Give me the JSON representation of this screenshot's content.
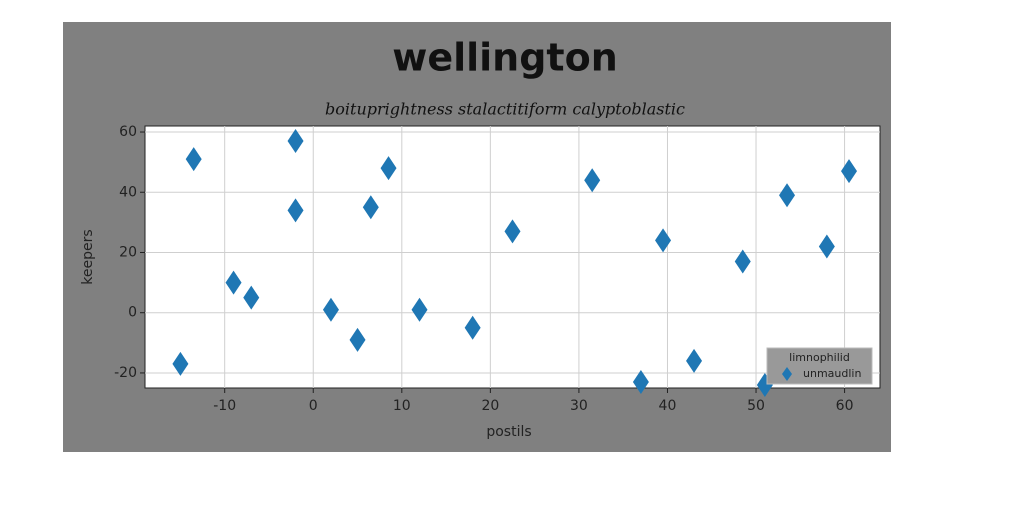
{
  "chart_data": {
    "type": "scatter",
    "title": "wellington",
    "subtitle": "boituprightness stalactitiform calyptoblastic",
    "xlabel": "postils",
    "ylabel": "keepers",
    "series": [
      {
        "name": "unmaudlin",
        "color": "#1f77b4",
        "x": [
          -15,
          -13.5,
          -9,
          -7,
          -2,
          -2,
          2,
          5,
          6.5,
          8.5,
          12,
          18,
          22.5,
          31.5,
          37,
          39.5,
          43,
          48.5,
          51,
          53.5,
          58,
          60.5
        ],
        "values": [
          -17,
          51,
          10,
          5,
          57,
          34,
          1,
          -9,
          35,
          48,
          1,
          -5,
          27,
          44,
          -23,
          24,
          -16,
          17,
          -24,
          39,
          22,
          47
        ]
      }
    ],
    "legend_title": "limnophilid",
    "legend": "lower right",
    "grid": true,
    "xlim": [
      -19,
      64
    ],
    "xticks": [
      -10,
      0,
      10,
      20,
      30,
      40,
      50,
      60
    ],
    "ylim": [
      -25,
      62
    ],
    "yticks": [
      -20,
      0,
      20,
      40,
      60
    ]
  }
}
